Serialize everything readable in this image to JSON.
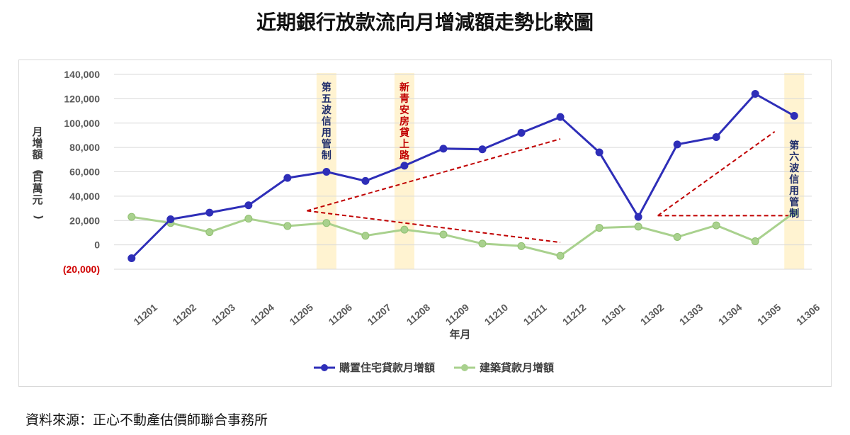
{
  "title": "近期銀行放款流向月增減額走勢比較圖",
  "source": "資料來源：正心不動產估價師聯合事務所",
  "chart_data": {
    "type": "line",
    "title": "近期銀行放款流向月增減額走勢比較圖",
    "xlabel": "年月",
    "ylabel": "月增額(百萬元)",
    "ylim": [
      -20000,
      140000
    ],
    "y_ticks": [
      140000,
      120000,
      100000,
      80000,
      60000,
      40000,
      20000,
      0,
      -20000
    ],
    "y_tick_labels": [
      "140,000",
      "120,000",
      "100,000",
      "80,000",
      "60,000",
      "40,000",
      "20,000",
      "0",
      "(20,000)"
    ],
    "categories": [
      "11201",
      "11202",
      "11203",
      "11204",
      "11205",
      "11206",
      "11207",
      "11208",
      "11209",
      "11210",
      "11211",
      "11212",
      "11301",
      "11302",
      "11303",
      "11304",
      "11305",
      "11306"
    ],
    "grid": true,
    "legend_position": "bottom",
    "series": [
      {
        "name": "購置住宅貸款月增額",
        "color": "#2e2eb8",
        "values": [
          -11000,
          21000,
          26500,
          32500,
          55000,
          60000,
          52500,
          65000,
          79000,
          78500,
          92000,
          105000,
          76000,
          23000,
          82500,
          88500,
          124000,
          106000
        ]
      },
      {
        "name": "建築貸款月增額",
        "color": "#a9d18e",
        "values": [
          23000,
          18000,
          10500,
          21500,
          15500,
          18000,
          7500,
          12500,
          8500,
          1000,
          -1000,
          -9000,
          14000,
          15000,
          6500,
          16000,
          3000,
          26500
        ]
      }
    ],
    "highlight_bands": [
      {
        "category": "11206",
        "label": "第五波信用管制",
        "color": "#1f2d6b"
      },
      {
        "category": "11208",
        "label": "新青安房貸上路",
        "color": "#c00000"
      },
      {
        "category": "11306",
        "label": "第六波信用管制",
        "color": "#1f2d6b"
      }
    ],
    "trend_lines": [
      {
        "from": [
          "11205.5",
          28000
        ],
        "to": [
          "11212",
          87000
        ]
      },
      {
        "from": [
          "11205.5",
          28000
        ],
        "to": [
          "11212",
          2000
        ]
      },
      {
        "from": [
          "11302.5",
          24000
        ],
        "to": [
          "11305.5",
          93000
        ]
      },
      {
        "from": [
          "11302.5",
          24000
        ],
        "to": [
          "11306",
          24000
        ]
      }
    ]
  }
}
